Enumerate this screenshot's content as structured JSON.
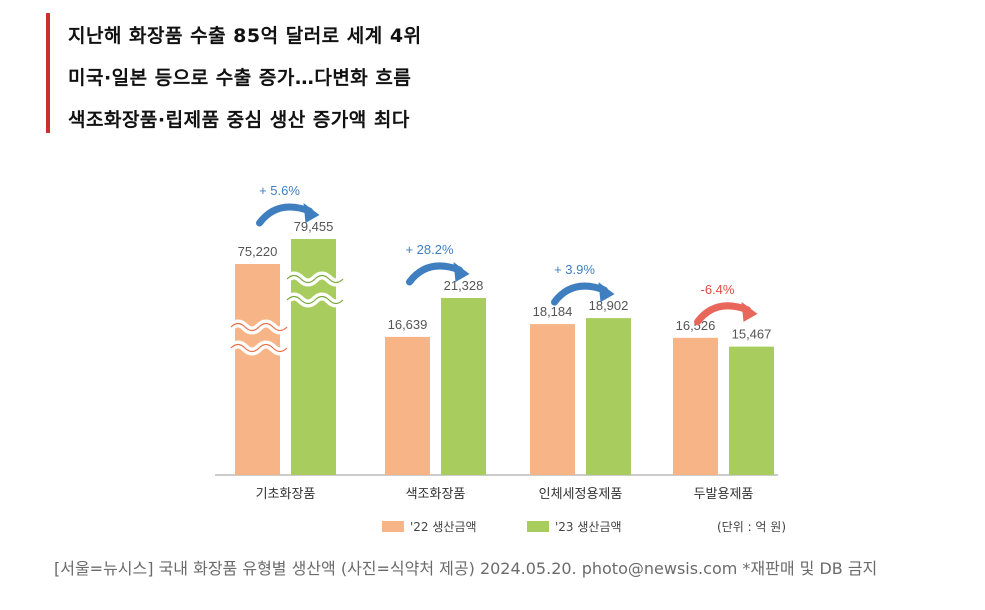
{
  "headlines": [
    "지난해 화장품 수출 85억 달러로 세계 4위",
    "미국·일본 등으로 수출 증가…다변화 흐름",
    "색조화장품·립제품 중심 생산 증가액 최다"
  ],
  "colors": {
    "accent_bar": "#c9302c",
    "series_2022": "#f6b487",
    "series_2023": "#a9cc5e",
    "arrow_up": "#3f7fc0",
    "arrow_down": "#e8675a",
    "text_up": "#3f7fc0",
    "text_down": "#e04a3f"
  },
  "chart_data": {
    "type": "bar",
    "title": "",
    "xlabel": "",
    "ylabel": "",
    "categories": [
      "기초화장품",
      "색조화장품",
      "인체세정용제품",
      "두발용제품"
    ],
    "series": [
      {
        "name": "'22 생산금액",
        "values": [
          75220,
          16639,
          18184,
          16526
        ],
        "labels": [
          "75,220",
          "16,639",
          "18,184",
          "16,526"
        ]
      },
      {
        "name": "'23 생산금액",
        "values": [
          79455,
          21328,
          18902,
          15467
        ],
        "labels": [
          "79,455",
          "21,328",
          "18,902",
          "15,467"
        ]
      }
    ],
    "changes": [
      "+ 5.6%",
      "+ 28.2%",
      "+ 3.9%",
      "-6.4%"
    ],
    "axis_break": "first category bars truncated (broken axis)",
    "legend_position": "bottom",
    "unit": "(단위 : 억 원)"
  },
  "caption": "[서울=뉴시스] 국내 화장품 유형별 생산액 (사진=식약처 제공) 2024.05.20. photo@newsis.com *재판매 및 DB 금지"
}
